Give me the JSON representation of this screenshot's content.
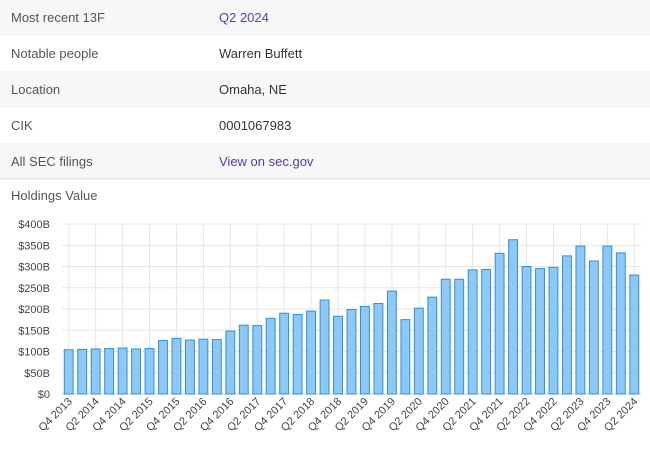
{
  "info": {
    "rows": [
      {
        "label": "Most recent 13F",
        "value": "Q2 2024"
      },
      {
        "label": "Notable people",
        "value": "Warren Buffett"
      },
      {
        "label": "Location",
        "value": "Omaha, NE"
      },
      {
        "label": "CIK",
        "value": "0001067983"
      },
      {
        "label": "All SEC filings",
        "value": "View on sec.gov"
      }
    ]
  },
  "chart_section": {
    "title": "Holdings Value"
  },
  "colors": {
    "bar_fill": "#8ec9f5",
    "bar_stroke": "#2f8fde",
    "grid": "#e6e6e6",
    "axis_text": "#444444"
  },
  "chart_data": {
    "type": "bar",
    "title": "Holdings Value",
    "xlabel": "",
    "ylabel": "",
    "ylim": [
      0,
      400
    ],
    "y_ticks": [
      "$0",
      "$50B",
      "$100B",
      "$150B",
      "$200B",
      "$250B",
      "$300B",
      "$350B",
      "$400B"
    ],
    "y_tick_values": [
      0,
      50,
      100,
      150,
      200,
      250,
      300,
      350,
      400
    ],
    "value_unit": "$B",
    "categories": [
      "Q4 2013",
      "Q1 2014",
      "Q2 2014",
      "Q3 2014",
      "Q4 2014",
      "Q1 2015",
      "Q2 2015",
      "Q3 2015",
      "Q4 2015",
      "Q1 2016",
      "Q2 2016",
      "Q3 2016",
      "Q4 2016",
      "Q1 2017",
      "Q2 2017",
      "Q3 2017",
      "Q4 2017",
      "Q1 2018",
      "Q2 2018",
      "Q3 2018",
      "Q4 2018",
      "Q1 2019",
      "Q2 2019",
      "Q3 2019",
      "Q4 2019",
      "Q1 2020",
      "Q2 2020",
      "Q3 2020",
      "Q4 2020",
      "Q1 2021",
      "Q2 2021",
      "Q3 2021",
      "Q4 2021",
      "Q1 2022",
      "Q2 2022",
      "Q3 2022",
      "Q4 2022",
      "Q1 2023",
      "Q2 2023",
      "Q3 2023",
      "Q4 2023",
      "Q1 2024",
      "Q2 2024"
    ],
    "x_tick_labels": [
      "Q4 2013",
      "Q2 2014",
      "Q4 2014",
      "Q2 2015",
      "Q4 2015",
      "Q2 2016",
      "Q4 2016",
      "Q2 2017",
      "Q4 2017",
      "Q2 2018",
      "Q4 2018",
      "Q2 2019",
      "Q4 2019",
      "Q2 2020",
      "Q4 2020",
      "Q2 2021",
      "Q4 2021",
      "Q2 2022",
      "Q4 2022",
      "Q2 2023",
      "Q4 2023",
      "Q2 2024"
    ],
    "values": [
      104,
      105,
      106,
      107,
      108,
      106,
      107,
      126,
      131,
      127,
      129,
      128,
      148,
      162,
      161,
      178,
      190,
      187,
      195,
      221,
      183,
      199,
      206,
      213,
      242,
      175,
      202,
      228,
      270,
      270,
      292,
      293,
      331,
      363,
      300,
      295,
      298,
      325,
      348,
      313,
      348,
      332,
      280
    ]
  }
}
